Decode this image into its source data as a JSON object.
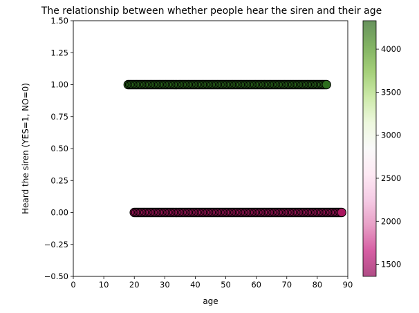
{
  "chart_data": {
    "type": "scatter",
    "title": "The relationship between whether people hear the siren and their age",
    "xlabel": "age",
    "ylabel": "Heard the siren (YES=1, NO=0)",
    "xlim": [
      0,
      90
    ],
    "ylim": [
      -0.5,
      1.5
    ],
    "x_ticks": [
      "0",
      "10",
      "20",
      "30",
      "40",
      "50",
      "60",
      "70",
      "80",
      "90"
    ],
    "y_ticks": [
      "1.50",
      "1.25",
      "1.00",
      "0.75",
      "0.50",
      "0.25",
      "0.00",
      "−0.25",
      "−0.50"
    ],
    "grid": false,
    "colormap": "PiYG",
    "colorbar_range": [
      1360,
      4330
    ],
    "colorbar_ticks": [
      "4000",
      "3500",
      "3000",
      "2500",
      "2000",
      "1500"
    ],
    "marker_edge_color": "#000000",
    "series": [
      {
        "y": 1,
        "color": "#2d6e1e",
        "x": [
          18,
          18.5,
          19,
          19.5,
          20,
          20.5,
          21,
          21.5,
          22,
          22.5,
          23,
          23.5,
          24,
          24.5,
          25,
          25.5,
          26,
          26.5,
          27,
          27.5,
          28,
          28.5,
          29,
          29.5,
          30,
          30.5,
          31,
          31.5,
          32,
          32.5,
          33,
          33.5,
          34,
          34.5,
          35,
          35.5,
          36,
          36.5,
          37,
          37.5,
          38,
          38.5,
          39,
          39.5,
          40,
          40.5,
          41,
          41.5,
          42,
          42.5,
          43,
          43.5,
          44,
          44.5,
          45,
          45.5,
          46,
          46.5,
          47,
          47.5,
          48,
          48.5,
          49,
          49.5,
          50,
          50.5,
          51,
          51.5,
          52,
          52.5,
          53,
          53.5,
          54,
          54.5,
          55,
          55.5,
          56,
          56.5,
          57,
          57.5,
          58,
          58.5,
          59,
          59.5,
          60,
          60.5,
          61,
          61.5,
          62,
          62.5,
          63,
          63.5,
          64,
          64.5,
          65,
          65.5,
          66,
          66.5,
          67,
          67.5,
          68,
          68.5,
          69,
          69.5,
          70,
          70.5,
          71,
          71.5,
          72,
          72.5,
          73,
          73.5,
          74,
          74.5,
          75,
          75.5,
          76,
          76.5,
          77,
          77.5,
          78,
          78.5,
          79,
          79.5,
          80,
          80.5,
          81,
          81.5,
          82,
          82.5,
          83
        ]
      },
      {
        "y": 0,
        "color": "#a8165e",
        "x": [
          20,
          20.5,
          21,
          21.5,
          22,
          22.5,
          23,
          23.5,
          24,
          24.5,
          25,
          25.5,
          26,
          26.5,
          27,
          27.5,
          28,
          28.5,
          29,
          29.5,
          30,
          30.5,
          31,
          31.5,
          32,
          32.5,
          33,
          33.5,
          34,
          34.5,
          35,
          35.5,
          36,
          36.5,
          37,
          37.5,
          38,
          38.5,
          39,
          39.5,
          40,
          40.5,
          41,
          41.5,
          42,
          42.5,
          43,
          43.5,
          44,
          44.5,
          45,
          45.5,
          46,
          46.5,
          47,
          47.5,
          48,
          48.5,
          49,
          49.5,
          50,
          50.5,
          51,
          51.5,
          52,
          52.5,
          53,
          53.5,
          54,
          54.5,
          55,
          55.5,
          56,
          56.5,
          57,
          57.5,
          58,
          58.5,
          59,
          59.5,
          60,
          60.5,
          61,
          61.5,
          62,
          62.5,
          63,
          63.5,
          64,
          64.5,
          65,
          65.5,
          66,
          66.5,
          67,
          67.5,
          68,
          68.5,
          69,
          69.5,
          70,
          70.5,
          71,
          71.5,
          72,
          72.5,
          73,
          73.5,
          74,
          74.5,
          75,
          75.5,
          76,
          76.5,
          77,
          77.5,
          78,
          78.5,
          79,
          79.5,
          80,
          80.5,
          81,
          81.5,
          82,
          82.5,
          83,
          83.5,
          84,
          84.5,
          85,
          85.5,
          86,
          86.5,
          87,
          87.5,
          88
        ]
      }
    ]
  }
}
